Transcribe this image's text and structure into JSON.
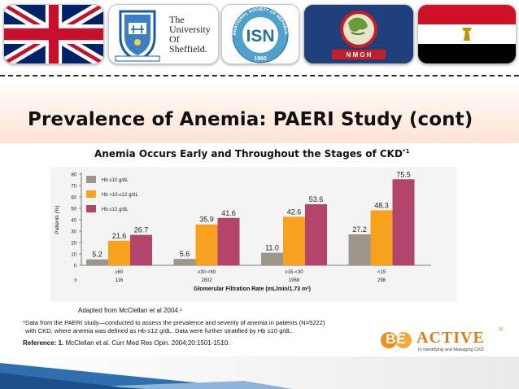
{
  "slide": {
    "title": "Prevalence of Anemia: PAERI Study (cont)",
    "subtitle": "Anemia Occurs Early and Throughout the Stages of CKD",
    "subtitle_sup": "*1",
    "adapted": "Adapted from McClellan et al 2004.¹",
    "footnote_line1": "*Data from the PAERI study—conducted to assess the prevalence and severity of anemia in patients (N=5222)",
    "footnote_line2": "with CKD, where anemia was defined as Hb ≤12 g/dL. Data were further stratified by Hb ≤10 g/dL.",
    "reference_label": "Reference: 1.",
    "reference_text": "McClellan et al. Curr Med Res Opin. 2004;20:1501-1510."
  },
  "logos": {
    "sheffield": {
      "line1": "The",
      "line2": "University",
      "line3": "Of",
      "line4": "Sheffield."
    },
    "isn": {
      "ring_text": "INTERNATIONAL SOCIETY OF NEPHROLOGY",
      "center": "ISN",
      "year": "1960"
    },
    "nmgh": {
      "text": "N M G H"
    },
    "beactive": {
      "be": "BE",
      "active": "ACTIVE",
      "reg": "®",
      "tagline": "In Identifying and Managing CKD"
    }
  },
  "colors": {
    "series1": "#9e958a",
    "series2": "#f6a21e",
    "series3": "#b3456d",
    "title_band": "#fde4d6"
  },
  "chart_data": {
    "type": "bar",
    "ylabel": "Patients (%)",
    "xlabel": "Glomerular Filtration Rate (mL/min/1.73 m²)",
    "ylim": [
      0,
      80
    ],
    "yticks": [
      0,
      10,
      20,
      30,
      40,
      50,
      60,
      70,
      80
    ],
    "categories": [
      "≥60",
      "≥30-<60",
      "≥15-<30",
      "<15"
    ],
    "n_label": "n",
    "n_values": [
      "116",
      "2832",
      "1968",
      "298"
    ],
    "legend_position": "top-left",
    "series": [
      {
        "name": "Hb ≤10 g/dL",
        "values": [
          5.2,
          5.6,
          11.0,
          27.2
        ]
      },
      {
        "name": "Hb >10-≤12 g/dL",
        "values": [
          21.6,
          35.9,
          42.6,
          48.3
        ]
      },
      {
        "name": "Hb ≤12 g/dL",
        "values": [
          26.7,
          41.6,
          53.6,
          75.5
        ]
      }
    ],
    "value_labels": [
      [
        "5.2",
        "5.6",
        "11.0",
        "27.2"
      ],
      [
        "21.6",
        "35.9",
        "42.6",
        "48.3"
      ],
      [
        "26.7",
        "41.6",
        "53.6",
        "75.5"
      ]
    ]
  }
}
